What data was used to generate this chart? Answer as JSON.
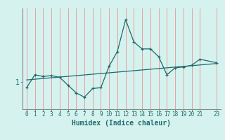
{
  "xlabel": "Humidex (Indice chaleur)",
  "background_color": "#d5f2ee",
  "line_color": "#1a6b6b",
  "grid_color": "#e8a0a0",
  "x_data": [
    0,
    1,
    2,
    3,
    4,
    5,
    6,
    7,
    8,
    9,
    10,
    11,
    12,
    13,
    14,
    15,
    16,
    17,
    18,
    19,
    20,
    21,
    23
  ],
  "y_data": [
    0.93,
    1.08,
    1.06,
    1.07,
    1.05,
    0.96,
    0.87,
    0.82,
    0.92,
    0.93,
    1.18,
    1.35,
    1.72,
    1.46,
    1.38,
    1.38,
    1.29,
    1.08,
    1.16,
    1.17,
    1.19,
    1.26,
    1.22
  ],
  "trend_x": [
    0,
    23
  ],
  "trend_y": [
    1.02,
    1.21
  ],
  "ytick_locs": [
    1
  ],
  "ytick_labels": [
    "1"
  ],
  "xtick_locs": [
    0,
    1,
    2,
    3,
    4,
    5,
    6,
    7,
    8,
    9,
    10,
    11,
    12,
    13,
    14,
    15,
    16,
    17,
    18,
    19,
    20,
    21,
    23
  ],
  "xtick_labels": [
    "0",
    "1",
    "2",
    "3",
    "4",
    "5",
    "6",
    "7",
    "8",
    "9",
    "10",
    "11",
    "12",
    "13",
    "14",
    "15",
    "16",
    "17",
    "18",
    "19",
    "20",
    "21",
    "23"
  ],
  "xlim": [
    -0.5,
    23.5
  ],
  "ylim": [
    0.68,
    1.85
  ]
}
